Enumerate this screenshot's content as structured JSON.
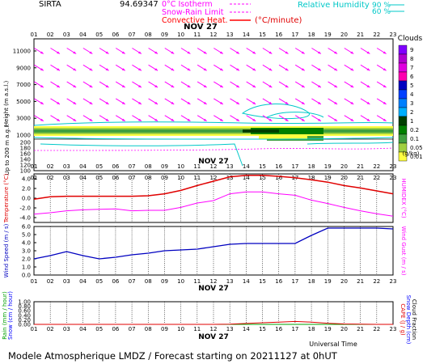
{
  "header": {
    "station": "SIRTA",
    "coords": "94.69347",
    "legend": [
      {
        "label": "0°C Isotherm",
        "color": "#ff00ff",
        "style": "dashed"
      },
      {
        "label": "Snow-Rain Limit",
        "color": "#ff00ff",
        "style": "dashed"
      },
      {
        "label": "Convective Heat.",
        "color": "#ff0000",
        "style": "solid"
      }
    ],
    "convective_unit": "(°C/minute)",
    "rh_label": "Relative Humidity",
    "rh_values": [
      "90 %",
      "60 %"
    ],
    "rh_colors": [
      "#00c8c8",
      "#00c8c8"
    ]
  },
  "hours": [
    "01",
    "02",
    "03",
    "04",
    "05",
    "06",
    "07",
    "08",
    "09",
    "10",
    "11",
    "12",
    "13",
    "14",
    "15",
    "16",
    "17",
    "18",
    "19",
    "20",
    "21",
    "22",
    "23"
  ],
  "date_label": "NOV 27",
  "footer": {
    "universal_time": "Universal Time",
    "model": "Modele Atmospherique LMDZ / Forecast starting on 20211127 at 0hUT"
  },
  "colors": {
    "wind_arrow": "#ff00ff",
    "temp": "#e00000",
    "humidex": "#ff00ff",
    "wind_speed": "#0000c0",
    "cape": "#e00000",
    "rain": "#00a000",
    "snow": "#0000ff"
  },
  "chart_data": [
    {
      "type": "heatmap",
      "name": "clouds",
      "ylabel": "Height (m a.s.l.)",
      "ylabel_low": "Up to 200 m a.g.l.",
      "y_ticks_upper": [
        "11000",
        "9000",
        "7000",
        "5000",
        "3000",
        "1000"
      ],
      "y_ticks_lower": [
        "200",
        "180",
        "160",
        "140",
        "120",
        "100"
      ],
      "colorbar_title": "Clouds",
      "colorbar_unit": "(g/kg)",
      "colorbar_labels": [
        "9",
        "8",
        "7",
        "6",
        "5",
        "4",
        "3",
        "2",
        "1",
        "0.2",
        "0.1",
        "0.05",
        "0.01"
      ],
      "colorbar_colors": [
        "#8000ff",
        "#b000d0",
        "#e000e0",
        "#ff00b0",
        "#0000c0",
        "#0040ff",
        "#0080ff",
        "#00b0ff",
        "#004000",
        "#008000",
        "#40a040",
        "#a0d040",
        "#ffff40"
      ],
      "wind_arrow_rows_m": [
        11000,
        9000,
        7000,
        5000,
        3000
      ]
    },
    {
      "type": "line",
      "name": "temperature",
      "ylabel": "Temperature (°C)",
      "ylabel_right": "HUMIDEX (°C)",
      "y_ticks": [
        "4.0",
        "2.0",
        "0.0",
        "-2.0",
        "-4.0"
      ],
      "ylim": [
        -5,
        5
      ],
      "series": [
        {
          "name": "Temperature",
          "values": [
            -0.2,
            0.3,
            0.4,
            0.4,
            0.4,
            0.4,
            0.4,
            0.5,
            0.9,
            1.6,
            2.6,
            3.5,
            4.4,
            4.7,
            4.7,
            4.5,
            4.2,
            3.8,
            3.3,
            2.6,
            2.1,
            1.5,
            0.9
          ]
        },
        {
          "name": "Humidex",
          "values": [
            -3.3,
            -3.0,
            -2.6,
            -2.4,
            -2.3,
            -2.2,
            -2.6,
            -2.5,
            -2.5,
            -1.9,
            -1.0,
            -0.5,
            0.9,
            1.3,
            1.3,
            0.9,
            0.6,
            -0.4,
            -1.1,
            -1.9,
            -2.6,
            -3.2,
            -3.7
          ]
        }
      ]
    },
    {
      "type": "line",
      "name": "wind",
      "ylabel": "Wind Speed (m / s)",
      "ylabel_right": "Wind Gust (m / s)",
      "y_ticks": [
        "6.0",
        "5.0",
        "4.0",
        "3.0",
        "2.0",
        "1.0",
        "0.0"
      ],
      "ylim": [
        0,
        6
      ],
      "series": [
        {
          "name": "Wind Speed",
          "values": [
            2.0,
            2.4,
            2.9,
            2.4,
            2.0,
            2.2,
            2.5,
            2.7,
            3.0,
            3.1,
            3.2,
            3.5,
            3.8,
            3.9,
            3.9,
            3.9,
            3.9,
            4.9,
            5.8,
            5.8,
            5.8,
            5.8,
            5.7
          ]
        }
      ]
    },
    {
      "type": "line",
      "name": "precipitation",
      "ylabel_lines": [
        "Rain (mm / hour)",
        "Snow (cm / hour)"
      ],
      "ylabel_right_lines": [
        "CAPE (J / g)",
        "Snow Depth (cm)",
        "Cloud Fraction"
      ],
      "y_ticks": [
        "1.00",
        "0.80",
        "0.60",
        "0.40",
        "0.20",
        "0.00"
      ],
      "ylim": [
        0,
        1
      ],
      "series": [
        {
          "name": "CAPE",
          "values": [
            0,
            0,
            0,
            0,
            0,
            0,
            0,
            0,
            0,
            0,
            0,
            0,
            0.01,
            0.04,
            0.07,
            0.1,
            0.13,
            0.1,
            0.05,
            0.02,
            0.01,
            0,
            0
          ]
        },
        {
          "name": "Rain",
          "values": [
            0,
            0,
            0,
            0,
            0,
            0,
            0,
            0,
            0,
            0,
            0,
            0,
            0,
            0,
            0,
            0,
            0,
            0,
            0,
            0,
            0,
            0,
            0
          ]
        }
      ]
    }
  ]
}
